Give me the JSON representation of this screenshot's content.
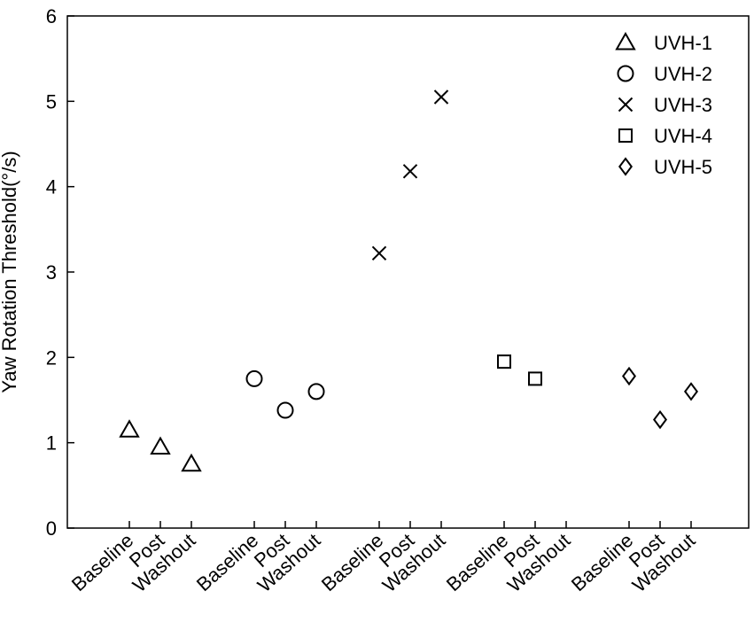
{
  "chart_data": {
    "type": "scatter",
    "title": "",
    "xlabel": "",
    "ylabel": "Yaw Rotation Threshold(°/s)",
    "ylim": [
      0,
      6
    ],
    "yticks": [
      "0",
      "1",
      "2",
      "3",
      "4",
      "5",
      "6"
    ],
    "grid": false,
    "legend_position": "top-right",
    "x_groups": [
      [
        "Baseline",
        "Post",
        "Washout"
      ],
      [
        "Baseline",
        "Post",
        "Washout"
      ],
      [
        "Baseline",
        "Post",
        "Washout"
      ],
      [
        "Baseline",
        "Post",
        "Washout"
      ],
      [
        "Baseline",
        "Post",
        "Washout"
      ]
    ],
    "series": [
      {
        "name": "UVH-1",
        "marker": "triangle",
        "values": [
          1.15,
          0.95,
          0.75
        ]
      },
      {
        "name": "UVH-2",
        "marker": "circle",
        "values": [
          1.75,
          1.38,
          1.6
        ]
      },
      {
        "name": "UVH-3",
        "marker": "x",
        "values": [
          3.22,
          4.18,
          5.05
        ]
      },
      {
        "name": "UVH-4",
        "marker": "square",
        "values": [
          1.95,
          1.75,
          null
        ]
      },
      {
        "name": "UVH-5",
        "marker": "diamond",
        "values": [
          1.78,
          1.27,
          1.6
        ]
      }
    ]
  }
}
